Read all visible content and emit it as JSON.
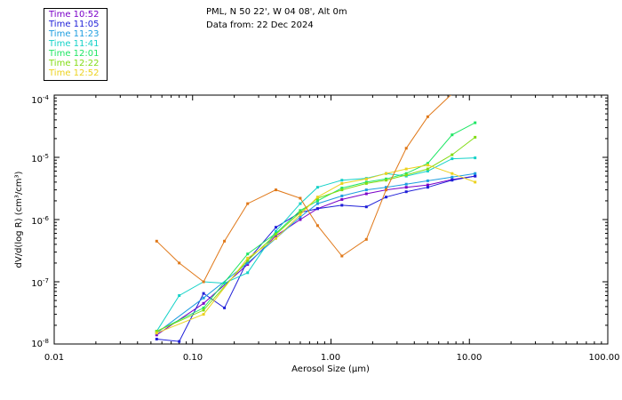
{
  "header": {
    "location": "PML, N 50 22', W 04 08', Alt 0m",
    "date": "Data from: 22 Dec 2024"
  },
  "chart_data": {
    "type": "line",
    "xlabel": "Aerosol Size (µm)",
    "ylabel": "dV/d(log R) (cm³/cm³)",
    "xscale": "log",
    "yscale": "log",
    "xlim": [
      0.01,
      100
    ],
    "ylim": [
      1e-08,
      0.0001
    ],
    "x_ticks": [
      "0.01",
      "0.10",
      "1.00",
      "10.00",
      "100.00"
    ],
    "y_ticks": [
      "10⁻⁸",
      "10⁻⁷",
      "10⁻⁶",
      "10⁻⁵",
      "10⁻⁴"
    ],
    "legend_position": "top-left",
    "series": [
      {
        "name": "Time 10:52",
        "color": "#7a00c8",
        "x": [
          0.055,
          0.12,
          0.25,
          0.4,
          0.6,
          0.8,
          1.2,
          1.8,
          2.5,
          3.5,
          5.0,
          7.5,
          11
        ],
        "y": [
          1.4e-08,
          4.5e-08,
          1.9e-07,
          5.5e-07,
          1e-06,
          1.5e-06,
          2.1e-06,
          2.6e-06,
          3e-06,
          3.3e-06,
          3.6e-06,
          4.4e-06,
          5e-06
        ]
      },
      {
        "name": "Time 11:05",
        "color": "#1f1fd8",
        "x": [
          0.055,
          0.08,
          0.12,
          0.17,
          0.25,
          0.4,
          0.6,
          0.8,
          1.2,
          1.8,
          2.5,
          3.5,
          5.0,
          7.5,
          11
        ],
        "y": [
          1.2e-08,
          1.1e-08,
          6.5e-08,
          3.8e-08,
          2.2e-07,
          7.5e-07,
          1.3e-06,
          1.5e-06,
          1.7e-06,
          1.6e-06,
          2.3e-06,
          2.8e-06,
          3.3e-06,
          4.3e-06,
          5e-06
        ]
      },
      {
        "name": "Time 11:23",
        "color": "#1e9ee0",
        "x": [
          0.055,
          0.12,
          0.25,
          0.4,
          0.6,
          0.8,
          1.2,
          1.8,
          2.5,
          3.5,
          5.0,
          7.5,
          11
        ],
        "y": [
          1.5e-08,
          5.5e-08,
          2e-07,
          5e-07,
          1.1e-06,
          1.8e-06,
          2.4e-06,
          3e-06,
          3.3e-06,
          3.7e-06,
          4.2e-06,
          4.8e-06,
          5.5e-06
        ]
      },
      {
        "name": "Time 11:41",
        "color": "#14d2c8",
        "x": [
          0.055,
          0.08,
          0.12,
          0.17,
          0.25,
          0.4,
          0.6,
          0.8,
          1.2,
          1.8,
          2.5,
          3.5,
          5.0,
          7.5,
          11
        ],
        "y": [
          1.6e-08,
          6e-08,
          1e-07,
          9.5e-08,
          1.4e-07,
          6.5e-07,
          1.8e-06,
          3.3e-06,
          4.3e-06,
          4.6e-06,
          5.5e-06,
          5e-06,
          6e-06,
          9.5e-06,
          9.8e-06
        ]
      },
      {
        "name": "Time 12:01",
        "color": "#1ee664",
        "x": [
          0.055,
          0.12,
          0.25,
          0.4,
          0.6,
          0.8,
          1.2,
          1.8,
          2.5,
          3.5,
          5.0,
          7.5,
          11
        ],
        "y": [
          1.6e-08,
          3.8e-08,
          2.8e-07,
          6e-07,
          1.4e-06,
          2e-06,
          3.2e-06,
          4e-06,
          4.5e-06,
          5.5e-06,
          8e-06,
          2.3e-05,
          3.6e-05
        ]
      },
      {
        "name": "Time 12:22",
        "color": "#82dc14",
        "x": [
          0.055,
          0.12,
          0.25,
          0.4,
          0.6,
          0.8,
          1.2,
          1.8,
          2.5,
          3.5,
          5.0,
          7.5,
          11
        ],
        "y": [
          1.6e-08,
          3.5e-08,
          2.2e-07,
          5.8e-07,
          1.3e-06,
          2.2e-06,
          3e-06,
          3.8e-06,
          4.3e-06,
          5.2e-06,
          6.5e-06,
          1.1e-05,
          2.1e-05
        ]
      },
      {
        "name": "Time 12:52",
        "color": "#ecd21e",
        "x": [
          0.055,
          0.12,
          0.25,
          0.4,
          0.6,
          0.8,
          1.2,
          1.8,
          2.5,
          3.5,
          5.0,
          7.5,
          11
        ],
        "y": [
          1.5e-08,
          3e-08,
          2.4e-07,
          5e-07,
          1.2e-06,
          2.3e-06,
          3.8e-06,
          4.5e-06,
          5.5e-06,
          6.5e-06,
          7.5e-06,
          5.5e-06,
          4e-06
        ]
      },
      {
        "name": "",
        "color": "#e07818",
        "x": [
          0.055,
          0.08,
          0.12,
          0.17,
          0.25,
          0.4,
          0.6,
          0.8,
          1.2,
          1.8,
          2.5,
          3.5,
          5.0,
          7.5
        ],
        "y": [
          4.5e-07,
          2e-07,
          1e-07,
          4.5e-07,
          1.8e-06,
          3e-06,
          2.2e-06,
          8e-07,
          2.6e-07,
          4.8e-07,
          3e-06,
          1.4e-05,
          4.5e-05,
          0.000105
        ]
      }
    ]
  }
}
